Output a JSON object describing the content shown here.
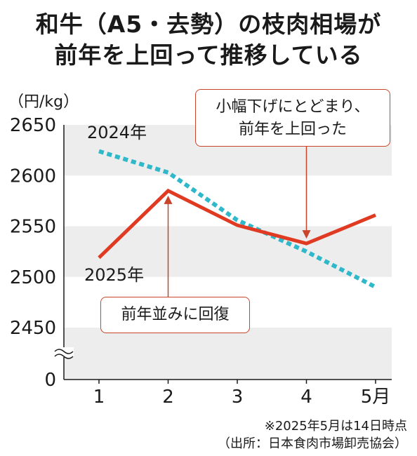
{
  "title": {
    "line1": "和牛（A5・去勢）の枝肉相場が",
    "line2": "前年を上回って推移している"
  },
  "chart_data": {
    "type": "line",
    "ylabel": "（円/kg）",
    "x": [
      "1",
      "2",
      "3",
      "4",
      "5月"
    ],
    "y_ticks": [
      "2650",
      "2600",
      "2550",
      "2500",
      "2450",
      "0"
    ],
    "ylim": [
      2450,
      2650
    ],
    "y_axis_break": true,
    "grid": "alternating horizontal bands",
    "series": [
      {
        "name": "2024年",
        "style": "dotted",
        "color": "#2fb8c9",
        "values": [
          2624,
          2603,
          2556,
          2525,
          2490
        ]
      },
      {
        "name": "2025年",
        "style": "solid",
        "color": "#e03a22",
        "values": [
          2519,
          2585,
          2551,
          2533,
          2561
        ]
      }
    ],
    "annotations": [
      {
        "line1": "小幅下げにとどまり、",
        "line2": "前年を上回った",
        "x": "4",
        "value": 2533
      },
      {
        "text": "前年並みに回復",
        "x": "2",
        "value": 2585
      }
    ]
  },
  "notes": {
    "line1": "※2025年5月は14日時点",
    "line2": "（出所：日本食肉市場卸売協会）"
  },
  "colors": {
    "accent": "#c8452b",
    "band": "#ededed"
  }
}
